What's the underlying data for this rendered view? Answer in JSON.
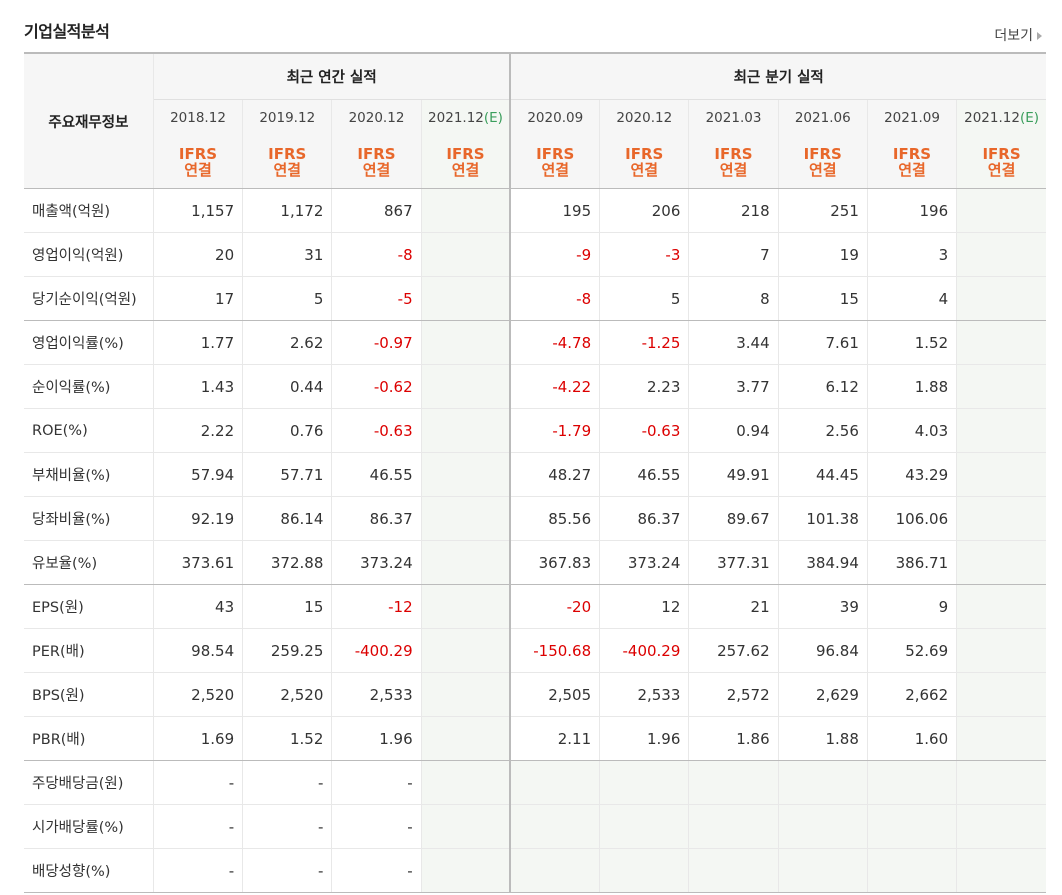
{
  "title": "기업실적분석",
  "more_label": "더보기",
  "header": {
    "main_label": "주요재무정보",
    "annual_label": "최근 연간 실적",
    "quarter_label": "최근 분기 실적",
    "periods": [
      "2018.12",
      "2019.12",
      "2020.12",
      "2021.12",
      "2020.09",
      "2020.12",
      "2021.03",
      "2021.06",
      "2021.09",
      "2021.12"
    ],
    "estimate_suffix": "(E)",
    "ifrs_line1": "IFRS",
    "ifrs_line2": "연결"
  },
  "rows": [
    {
      "label": "매출액(억원)",
      "values": [
        "1,157",
        "1,172",
        "867",
        "",
        "195",
        "206",
        "218",
        "251",
        "196",
        ""
      ]
    },
    {
      "label": "영업이익(억원)",
      "values": [
        "20",
        "31",
        "-8",
        "",
        "-9",
        "-3",
        "7",
        "19",
        "3",
        ""
      ]
    },
    {
      "label": "당기순이익(억원)",
      "values": [
        "17",
        "5",
        "-5",
        "",
        "-8",
        "5",
        "8",
        "15",
        "4",
        ""
      ]
    },
    {
      "label": "영업이익률(%)",
      "values": [
        "1.77",
        "2.62",
        "-0.97",
        "",
        "-4.78",
        "-1.25",
        "3.44",
        "7.61",
        "1.52",
        ""
      ]
    },
    {
      "label": "순이익률(%)",
      "values": [
        "1.43",
        "0.44",
        "-0.62",
        "",
        "-4.22",
        "2.23",
        "3.77",
        "6.12",
        "1.88",
        ""
      ]
    },
    {
      "label": "ROE(%)",
      "values": [
        "2.22",
        "0.76",
        "-0.63",
        "",
        "-1.79",
        "-0.63",
        "0.94",
        "2.56",
        "4.03",
        ""
      ]
    },
    {
      "label": "부채비율(%)",
      "values": [
        "57.94",
        "57.71",
        "46.55",
        "",
        "48.27",
        "46.55",
        "49.91",
        "44.45",
        "43.29",
        ""
      ]
    },
    {
      "label": "당좌비율(%)",
      "values": [
        "92.19",
        "86.14",
        "86.37",
        "",
        "85.56",
        "86.37",
        "89.67",
        "101.38",
        "106.06",
        ""
      ]
    },
    {
      "label": "유보율(%)",
      "values": [
        "373.61",
        "372.88",
        "373.24",
        "",
        "367.83",
        "373.24",
        "377.31",
        "384.94",
        "386.71",
        ""
      ]
    },
    {
      "label": "EPS(원)",
      "values": [
        "43",
        "15",
        "-12",
        "",
        "-20",
        "12",
        "21",
        "39",
        "9",
        ""
      ]
    },
    {
      "label": "PER(배)",
      "values": [
        "98.54",
        "259.25",
        "-400.29",
        "",
        "-150.68",
        "-400.29",
        "257.62",
        "96.84",
        "52.69",
        ""
      ]
    },
    {
      "label": "BPS(원)",
      "values": [
        "2,520",
        "2,520",
        "2,533",
        "",
        "2,505",
        "2,533",
        "2,572",
        "2,629",
        "2,662",
        ""
      ]
    },
    {
      "label": "PBR(배)",
      "values": [
        "1.69",
        "1.52",
        "1.96",
        "",
        "2.11",
        "1.96",
        "1.86",
        "1.88",
        "1.60",
        ""
      ]
    },
    {
      "label": "주당배당금(원)",
      "values": [
        "-",
        "-",
        "-",
        "",
        "",
        "",
        "",
        "",
        "",
        ""
      ]
    },
    {
      "label": "시가배당률(%)",
      "values": [
        "-",
        "-",
        "-",
        "",
        "",
        "",
        "",
        "",
        "",
        ""
      ]
    },
    {
      "label": "배당성향(%)",
      "values": [
        "-",
        "-",
        "-",
        "",
        "",
        "",
        "",
        "",
        "",
        ""
      ]
    }
  ],
  "colors": {
    "negative": "#dc0000",
    "ifrs": "#e8672a",
    "estimate": "#3a9e5c",
    "estimate_bg": "#f4f7f3"
  }
}
